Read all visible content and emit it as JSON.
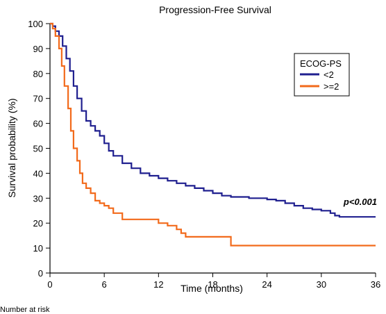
{
  "chart_data": {
    "type": "line",
    "title": "Progression-Free Survival",
    "xlabel": "Time (months)",
    "ylabel": "Survival probability (%)",
    "xlim": [
      0,
      36
    ],
    "ylim": [
      0,
      100
    ],
    "xticks": [
      0,
      6,
      12,
      18,
      24,
      30,
      36
    ],
    "yticks": [
      0,
      10,
      20,
      30,
      40,
      50,
      60,
      70,
      80,
      90,
      100
    ],
    "grid": false,
    "step": true,
    "legend": {
      "title": "ECOG-PS",
      "position": "top-right"
    },
    "annotation": "p<0.001",
    "footer_text": "Number at risk",
    "series": [
      {
        "name": "<2",
        "color": "#1f1f8f",
        "x": [
          0,
          0.3,
          0.6,
          1.0,
          1.4,
          1.8,
          2.2,
          2.6,
          3.0,
          3.5,
          4.0,
          4.5,
          5.0,
          5.5,
          6.0,
          6.5,
          7.0,
          8.0,
          9.0,
          10.0,
          11.0,
          12.0,
          13.0,
          14.0,
          15.0,
          16.0,
          17.0,
          18.0,
          19.0,
          20.0,
          22.0,
          24.0,
          25.0,
          26.0,
          27.0,
          28.0,
          29.0,
          30.0,
          31.0,
          31.5,
          32.0,
          36.0
        ],
        "y": [
          100,
          99,
          97,
          95,
          91,
          86,
          81,
          75,
          70,
          65,
          61,
          59,
          57,
          55,
          52,
          49,
          47,
          44,
          42,
          40,
          39,
          38,
          37,
          36,
          35,
          34,
          33,
          32,
          31,
          30.5,
          30,
          29.5,
          29,
          28,
          27,
          26,
          25.5,
          25,
          24,
          23,
          22.5,
          22.5
        ]
      },
      {
        "name": ">=2",
        "color": "#f26a1b",
        "x": [
          0,
          0.3,
          0.6,
          1.0,
          1.3,
          1.6,
          2.0,
          2.3,
          2.6,
          3.0,
          3.3,
          3.6,
          4.0,
          4.5,
          5.0,
          5.5,
          6.0,
          6.5,
          7.0,
          8.0,
          9.0,
          10.0,
          11.0,
          12.0,
          13.0,
          14.0,
          14.5,
          15.0,
          16.0,
          18.0,
          20.0,
          36.0
        ],
        "y": [
          100,
          98,
          95,
          90,
          83,
          75,
          66,
          57,
          50,
          45,
          40,
          36,
          34,
          32,
          29,
          28,
          27,
          26,
          24,
          21.5,
          21.5,
          21.5,
          21.5,
          20,
          19,
          17.5,
          16,
          14.5,
          14.5,
          14.5,
          11,
          11
        ]
      }
    ]
  }
}
